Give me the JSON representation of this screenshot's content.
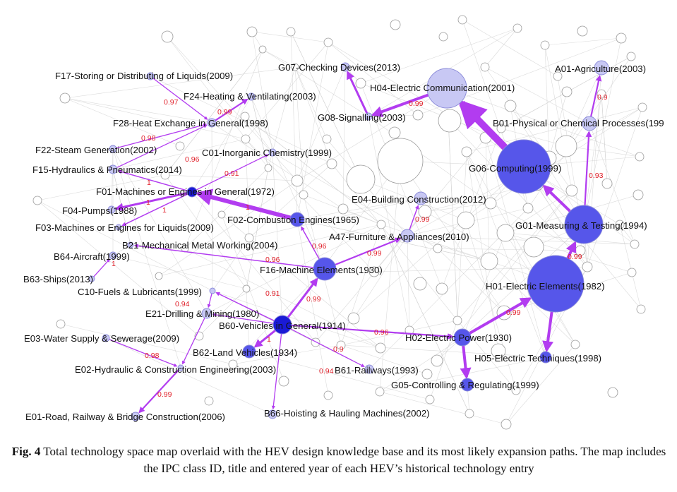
{
  "figure": {
    "caption_label": "Fig. 4",
    "caption_text": "Total technology space map overlaid with the HEV design knowledge base and its most likely expansion paths. The map includes the IPC class ID, title and entered year of each HEV’s historical technology entry"
  },
  "colors": {
    "hev_node_dark": "#1a1ad6",
    "hev_node": "#5656ea",
    "hev_node_light": "#c8c8f4",
    "background_node": "#ffffff",
    "background_edge": "#cfcfcf",
    "expansion_edge": "#b23cf0",
    "weight_label": "#e0202a"
  },
  "nodes": {
    "F17": "F17-Storing or Distributing of Liquids(2009)",
    "F24": "F24-Heating & Ventilating(2003)",
    "F28": "F28-Heat Exchange in General(1998)",
    "F22": "F22-Steam Generation(2002)",
    "C01": "C01-Inorganic Chemistry(1999)",
    "F15": "F15-Hydraulics & Pneumatics(2014)",
    "F01": "F01-Machines or Engines in General(1972)",
    "F04": "F04-Pumps(1988)",
    "F02": "F02-Combustion Engines(1965)",
    "F03": "F03-Machines or Engines for Liquids(2009)",
    "B21": "B21-Mechanical Metal Working(2004)",
    "B64": "B64-Aircraft(1999)",
    "B63": "B63-Ships(2013)",
    "C10": "C10-Fuels & Lubricants(1999)",
    "E21": "E21-Drilling & Mining(1980)",
    "E03": "E03-Water Supply & Sewerage(2009)",
    "E02": "E02-Hydraulic & Construction Engineering(2003)",
    "E01": "E01-Road, Railway & Bridge Construction(2006)",
    "G07": "G07-Checking Devices(2013)",
    "H04": "H04-Electric Communication(2001)",
    "G08": "G08-Signalling(2003)",
    "A01": "A01-Agriculture(2003)",
    "B01": "B01-Physical or Chemical Processes(199",
    "G06": "G06-Computing(1999)",
    "E04": "E04-Building Construction(2012)",
    "A47": "A47-Furniture & Appliances(2010)",
    "G01": "G01-Measuring & Testing(1994)",
    "F16": "F16-Machine Elements(1930)",
    "H01": "H01-Electric Elements(1982)",
    "B60": "B60-Vehicles in General(1914)",
    "H02": "H02-Electric Power(1930)",
    "H05": "H05-Electric Techniques(1998)",
    "B62": "B62-Land Vehicles(1934)",
    "B61": "B61-Railways(1993)",
    "G05": "G05-Controlling & Regulating(1999)",
    "B66": "B66-Hoisting & Hauling Machines(2002)"
  },
  "weights": {
    "F17_F28": "0.97",
    "F28_F24": "0.99",
    "F22_F28": "0.98",
    "F15_F28": "0.96",
    "F01_C01": "0.91",
    "F01_F15": "1",
    "F01_F04": "1",
    "F01_F03": "1",
    "F02_F01": "1",
    "B21_F16": "0.96",
    "F16_B21": "0.96",
    "F16_A47": "0.99",
    "A47_E04": "0.99",
    "B60_C10": "0.91",
    "B60_F16": "0.99",
    "C10_E21": "0.94",
    "B63_B64": "1",
    "E03_E02": "0.98",
    "E02_E01": "0.99",
    "B60_H02": "0.96",
    "B60_B61": "0.9",
    "B60_B66": "0.94",
    "B60_B62": "1",
    "H04_G08": "0.99",
    "H02_H01": "0.99",
    "H01_G01": "0.99",
    "G01_B01": "0.93",
    "B01_A01": "0.9"
  }
}
